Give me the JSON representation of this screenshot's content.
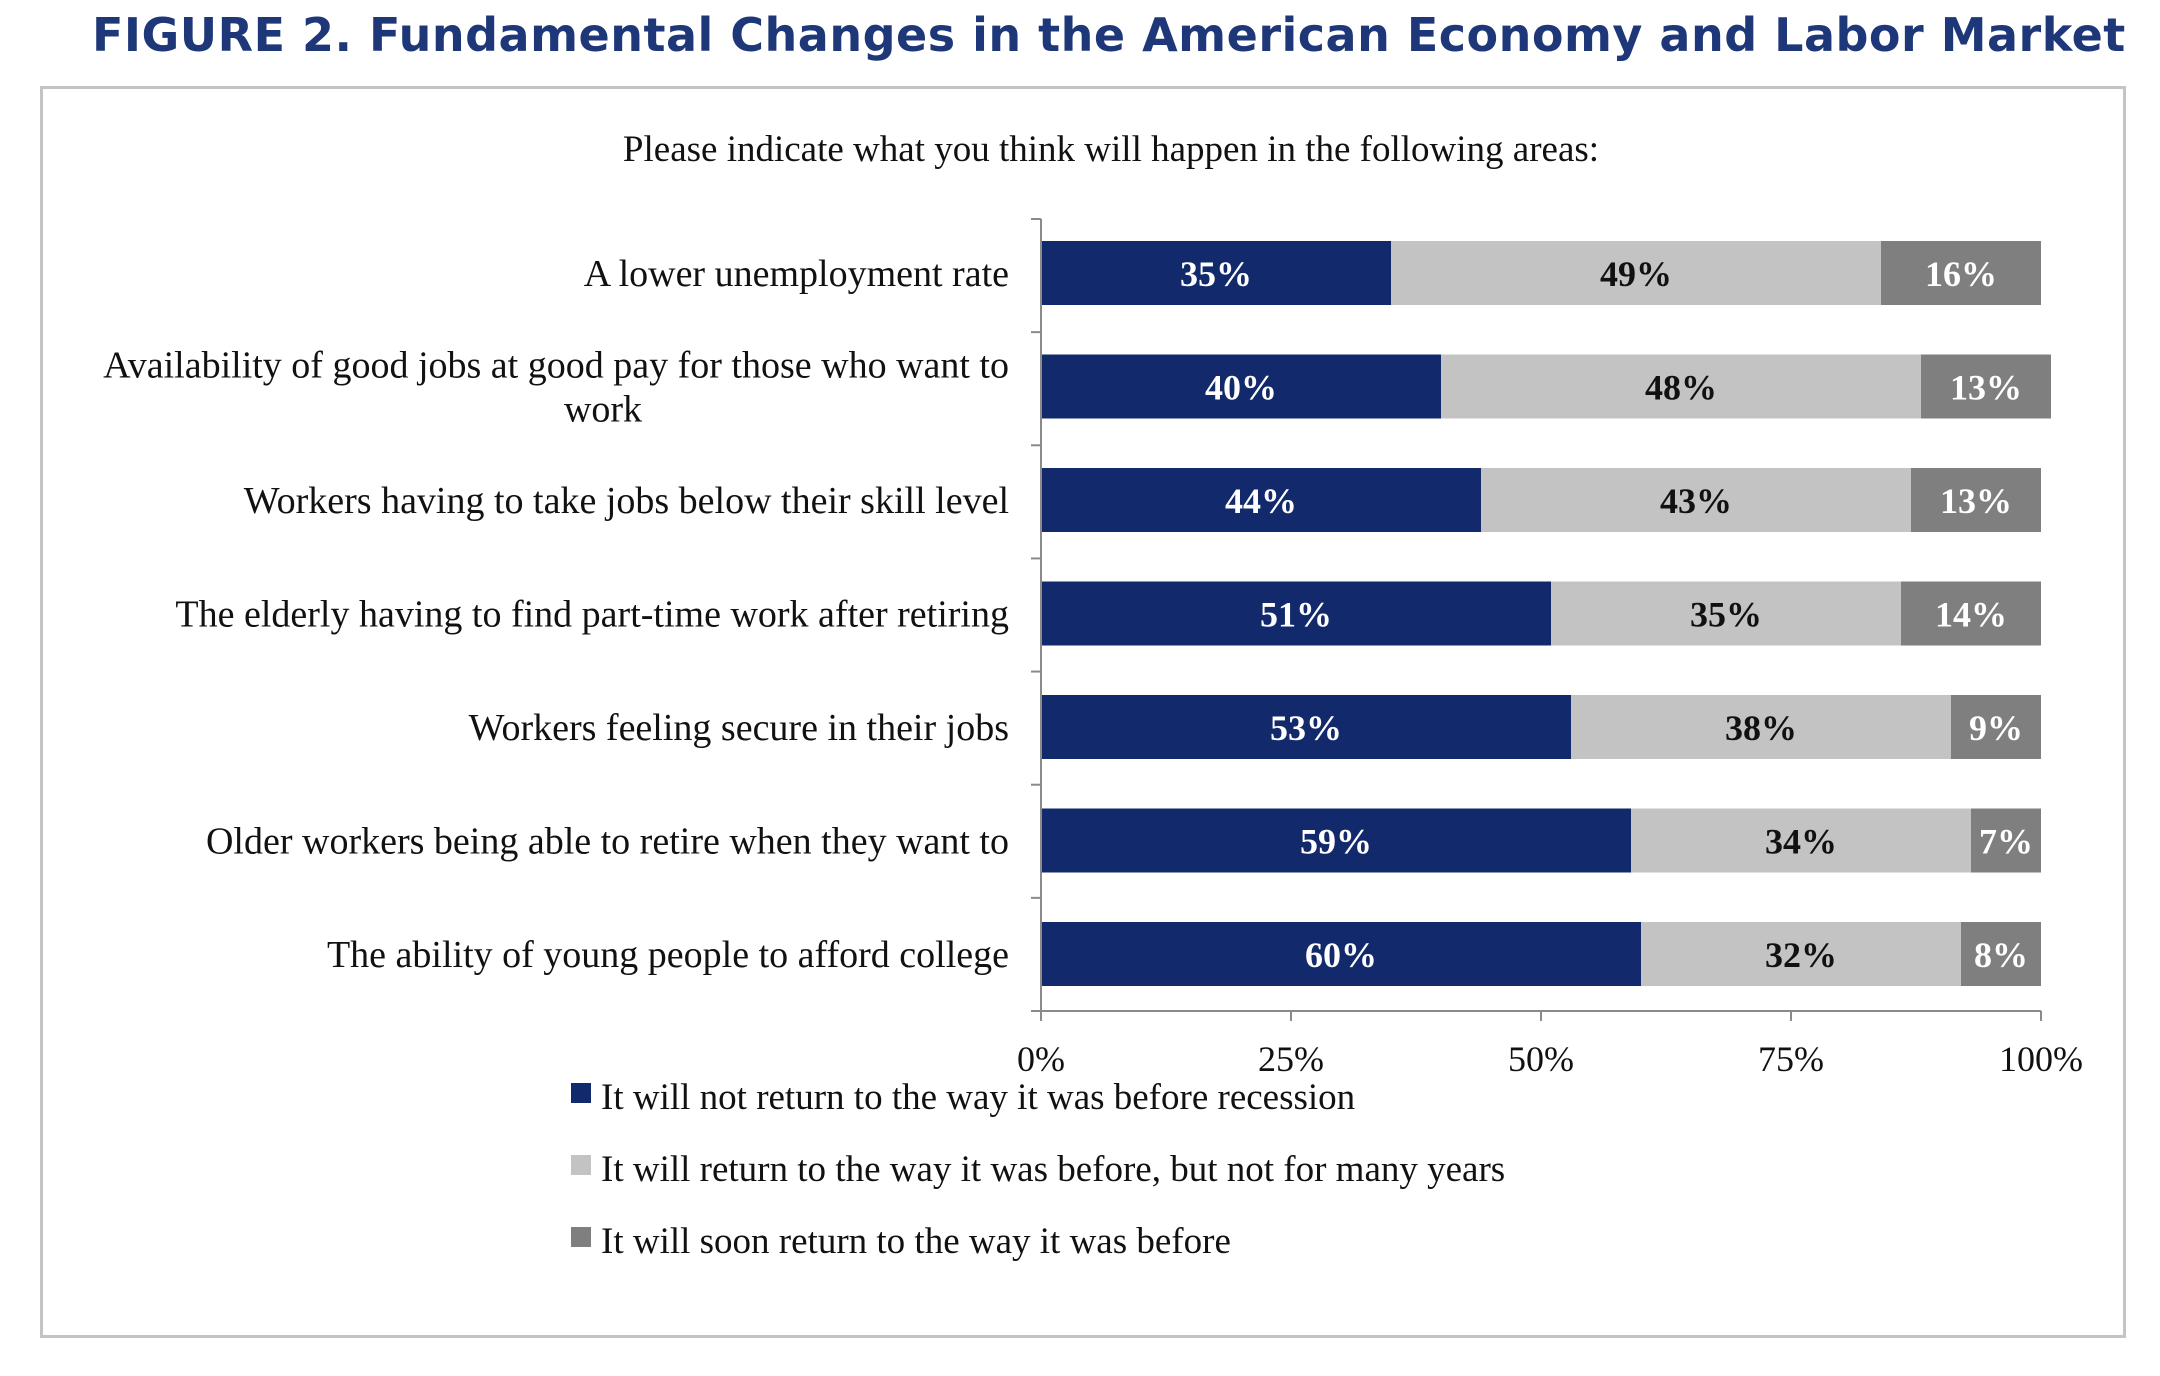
{
  "figure": {
    "title": "FIGURE 2. Fundamental Changes in the American Economy and Labor Market"
  },
  "chart_data": {
    "type": "bar",
    "orientation": "horizontal",
    "stacked": true,
    "title": "Please indicate what you think will happen in the following areas:",
    "categories": [
      "A lower unemployment rate",
      "Availability of good jobs at good pay for those who want to work",
      "Workers having to take jobs below their skill level",
      "The elderly having to find part-time work after retiring",
      "Workers feeling secure in their jobs",
      "Older workers being able to retire when they want to",
      "The ability of young people to afford college"
    ],
    "series": [
      {
        "name": "It will not return to the way it was before recession",
        "color": "#122a6b",
        "label_color": "#ffffff",
        "values": [
          35,
          40,
          44,
          51,
          53,
          59,
          60
        ]
      },
      {
        "name": "It will return to the way it was before, but not for many years",
        "color": "#c3c3c3",
        "label_color": "#111111",
        "values": [
          49,
          48,
          43,
          35,
          38,
          34,
          32
        ]
      },
      {
        "name": "It will soon return to the way it was before",
        "color": "#7f7f7f",
        "label_color": "#ffffff",
        "values": [
          16,
          13,
          13,
          14,
          9,
          7,
          8
        ]
      }
    ],
    "xlim": [
      0,
      100
    ],
    "xticks": [
      "0%",
      "25%",
      "50%",
      "75%",
      "100%"
    ],
    "value_suffix": "%",
    "grid": false,
    "legend_position": "bottom"
  }
}
